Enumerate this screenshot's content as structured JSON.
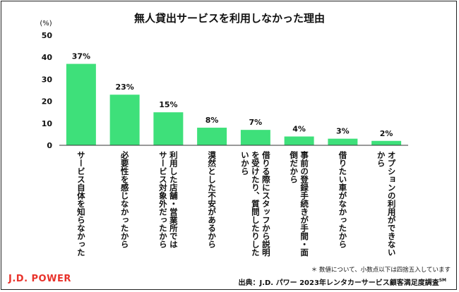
{
  "chart_data": {
    "type": "bar",
    "title": "無人貸出サービスを利用しなかった理由",
    "ylabel": "(%)",
    "ylim": [
      0,
      50
    ],
    "yticks": [
      0,
      10,
      20,
      30,
      40,
      50
    ],
    "grid": false,
    "categories": [
      [
        "サービス自体を知らなかった"
      ],
      [
        "必要性を感じなかったから"
      ],
      [
        "利用した店舗・営業所では",
        "サービス対象外だったから"
      ],
      [
        "漠然とした不安があるから"
      ],
      [
        "借りる際にスタッフから説明",
        "を受けたり、質問したりした",
        "いから"
      ],
      [
        "事前の登録手続きが手間・面",
        "倒だから"
      ],
      [
        "借りたい車がなかったから"
      ],
      [
        "オプションの利用ができない",
        "から"
      ]
    ],
    "values": [
      37,
      23,
      15,
      8,
      7,
      4,
      3,
      2
    ],
    "data_labels": [
      "37%",
      "23%",
      "15%",
      "8%",
      "7%",
      "4%",
      "3%",
      "2%"
    ],
    "bar_color": "#3ee07a"
  },
  "footnote": "＊ 数値について、小数点以下は四捨五入しています",
  "source": "出典：J.D. パワー 2023年レンタカーサービス顧客満足度調査",
  "source_mark": "SM",
  "logo": "J.D. POWER"
}
